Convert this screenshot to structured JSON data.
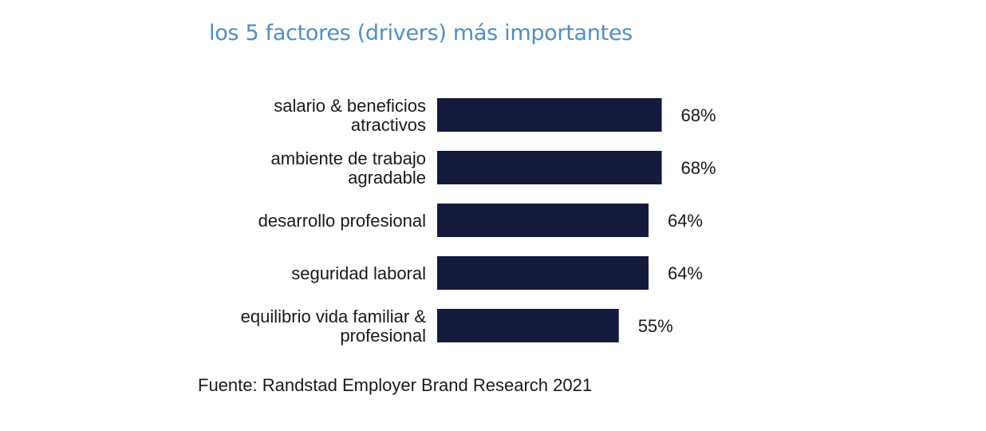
{
  "colors": {
    "title": "#4f8fbf",
    "bar": "#141a3c",
    "text": "#1a1a1a"
  },
  "chart_data": {
    "type": "bar",
    "orientation": "horizontal",
    "title": "los 5 factores (drivers) más importantes",
    "categories": [
      [
        "salario & beneficios",
        "atractivos"
      ],
      [
        "ambiente de trabajo",
        "agradable"
      ],
      [
        "desarrollo profesional"
      ],
      [
        "seguridad laboral"
      ],
      [
        "equilibrio vida familiar &",
        "profesional"
      ]
    ],
    "values": [
      68,
      68,
      64,
      64,
      55
    ],
    "value_labels": [
      "68%",
      "68%",
      "64%",
      "64%",
      "55%"
    ],
    "unit": "%",
    "grid": false,
    "legend": "none"
  },
  "source": "Fuente: Randstad Employer Brand Research 2021"
}
